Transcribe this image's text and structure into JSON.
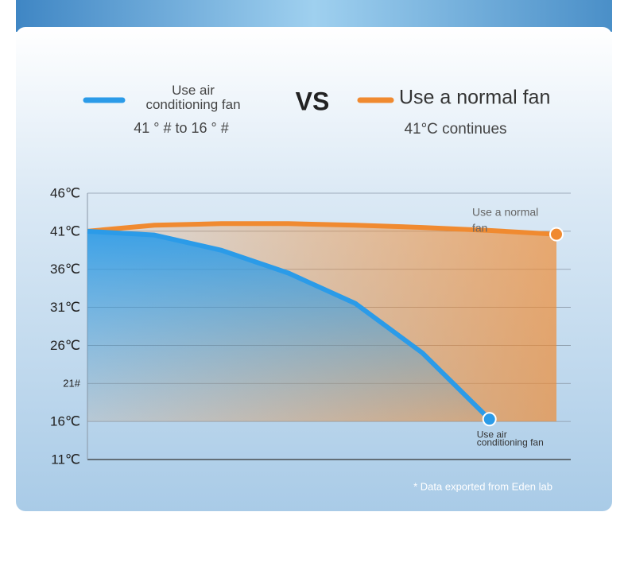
{
  "chart_data": {
    "type": "line",
    "legend_left": {
      "label": "Use air conditioning fan",
      "note": "41 ° # to 16 ° #"
    },
    "vs": "VS",
    "legend_right": {
      "label": "Use a normal fan",
      "note": "41°C continues"
    },
    "footnote": "* Data exported from Eden lab",
    "categories": [
      null,
      null,
      null,
      null,
      null,
      null,
      null,
      null
    ],
    "series": [
      {
        "name": "Use a normal fan",
        "color": "#f08a30",
        "values": [
          41,
          41.8,
          42,
          42,
          41.8,
          41.5,
          41.1,
          40.6
        ]
      },
      {
        "name": "Use air conditioning fan",
        "color": "#2b9be8",
        "values": [
          41,
          40.5,
          38.5,
          35.5,
          31.5,
          25,
          16.3,
          null
        ]
      }
    ],
    "ylim": [
      11,
      46
    ],
    "yticks": [
      {
        "value": 11,
        "label": "11℃"
      },
      {
        "value": 16,
        "label": "16℃"
      },
      {
        "value": 21,
        "label": "21#"
      },
      {
        "value": 26,
        "label": "26℃"
      },
      {
        "value": 31,
        "label": "31℃"
      },
      {
        "value": 36,
        "label": "36℃"
      },
      {
        "value": 41,
        "label": "41℃"
      },
      {
        "value": 46,
        "label": "46℃"
      }
    ],
    "grid": true
  }
}
